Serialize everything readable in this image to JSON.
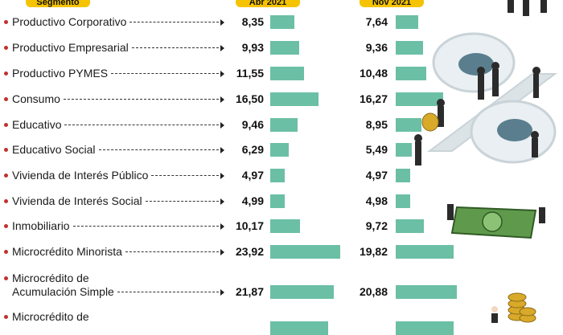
{
  "header": {
    "col_segment": "Segmento",
    "col_a": "Abr 2021",
    "col_b": "Nov 2021"
  },
  "colors": {
    "bar": "#6bbfa5",
    "header_bg": "#f5c300",
    "bullet": "#c0322c"
  },
  "chart_data": {
    "type": "bar",
    "orientation": "horizontal",
    "series": [
      {
        "name": "Abr 2021",
        "values": [
          8.35,
          9.93,
          11.55,
          16.5,
          9.46,
          6.29,
          4.97,
          4.99,
          10.17,
          23.92,
          21.87
        ]
      },
      {
        "name": "Nov 2021",
        "values": [
          7.64,
          9.36,
          10.48,
          16.27,
          8.95,
          5.49,
          4.97,
          4.98,
          9.72,
          19.82,
          20.88
        ]
      }
    ],
    "rows": [
      {
        "label": [
          "Productivo Corporativo"
        ],
        "a": "8,35",
        "b": "7,64"
      },
      {
        "label": [
          "Productivo Empresarial"
        ],
        "a": "9,93",
        "b": "9,36"
      },
      {
        "label": [
          "Productivo PYMES"
        ],
        "a": "11,55",
        "b": "10,48"
      },
      {
        "label": [
          "Consumo"
        ],
        "a": "16,50",
        "b": "16,27"
      },
      {
        "label": [
          "Educativo"
        ],
        "a": "9,46",
        "b": "8,95"
      },
      {
        "label": [
          "Educativo Social"
        ],
        "a": "6,29",
        "b": "5,49"
      },
      {
        "label": [
          "Vivienda de Interés Público"
        ],
        "a": "4,97",
        "b": "4,97"
      },
      {
        "label": [
          "Vivienda de Interés Social"
        ],
        "a": "4,99",
        "b": "4,98"
      },
      {
        "label": [
          "Inmobiliario"
        ],
        "a": "10,17",
        "b": "9,72"
      },
      {
        "label": [
          "Microcrédito Minorista"
        ],
        "a": "23,92",
        "b": "19,82"
      },
      {
        "label": [
          "Microcrédito de",
          "Acumulación Simple"
        ],
        "a": "21,87",
        "b": "20,88"
      },
      {
        "label": [
          "Microcrédito de"
        ],
        "a": "",
        "b": ""
      }
    ]
  }
}
